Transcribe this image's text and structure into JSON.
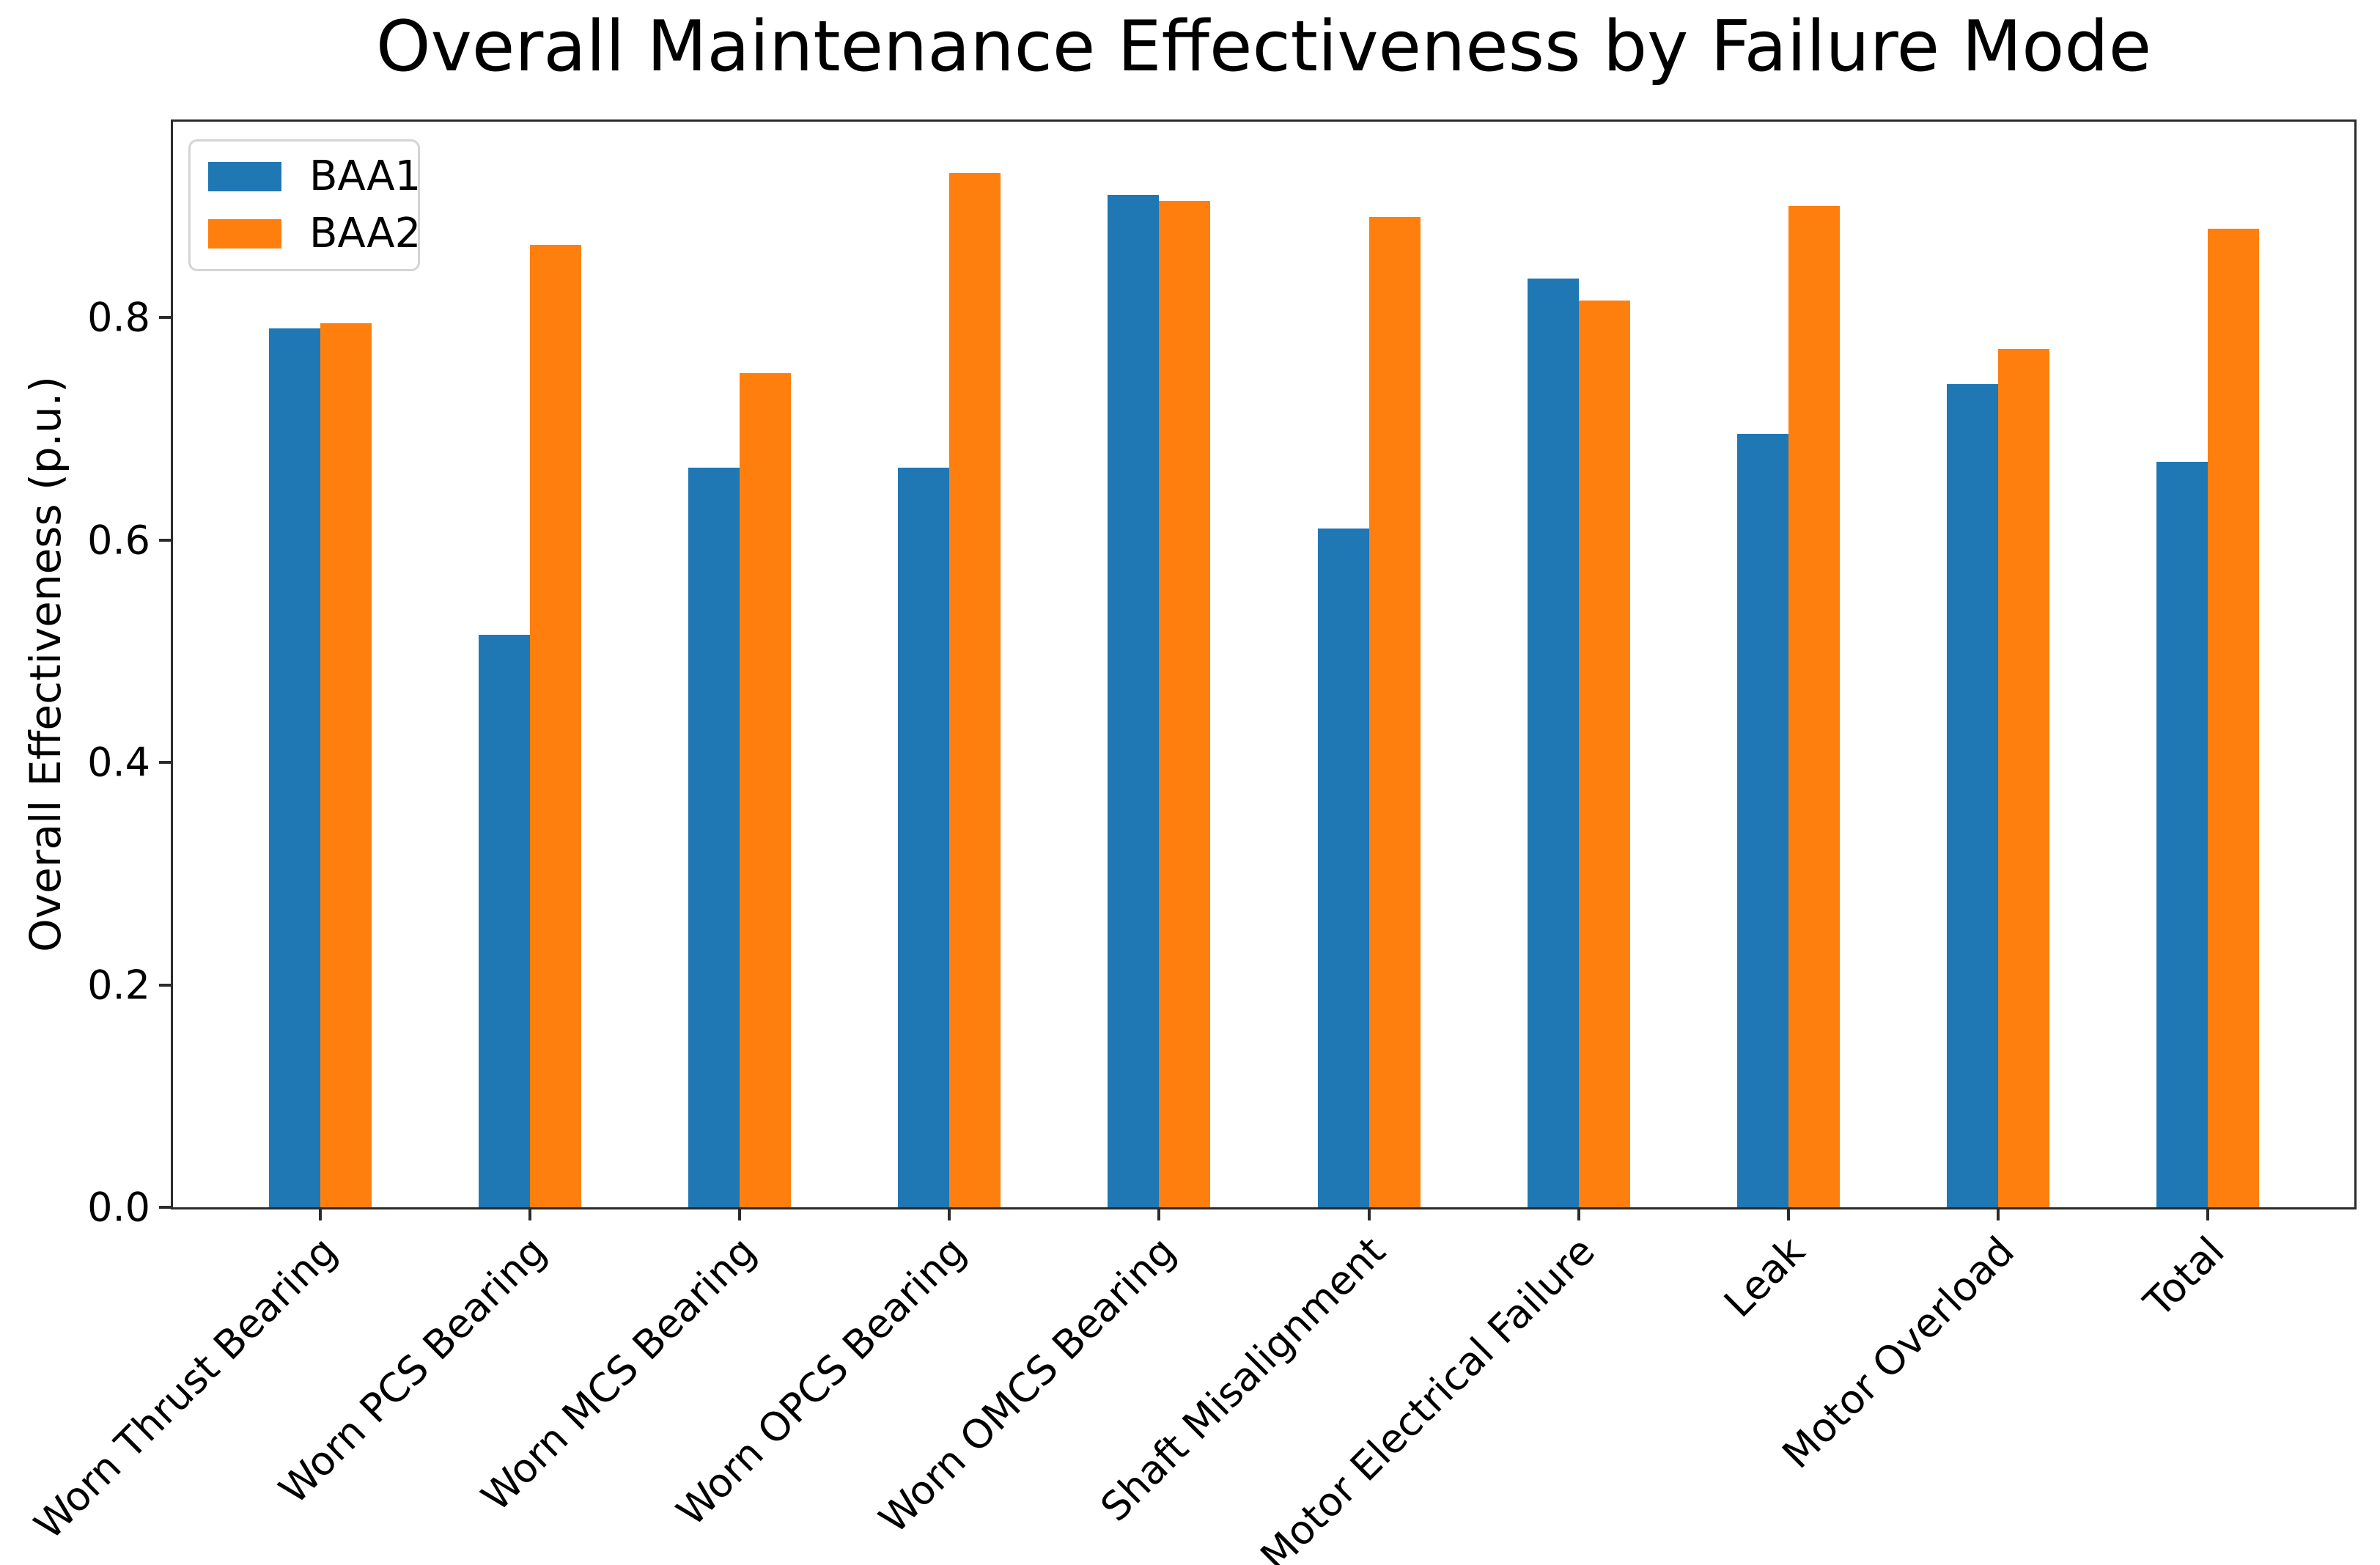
{
  "title": "Overall Maintenance Effectiveness by Failure Mode",
  "chart_data": {
    "type": "bar",
    "title": "Overall Maintenance Effectiveness by Failure Mode",
    "xlabel": "",
    "ylabel": "Overall Effectiveness (p.u.)",
    "categories": [
      "Worn Thrust Bearing",
      "Worn PCS Bearing",
      "Worn MCS Bearing",
      "Worn OPCS Bearing",
      "Worn OMCS Bearing",
      "Shaft Misalignment",
      "Motor Electrical Failure",
      "Leak",
      "Motor Overload",
      "Total"
    ],
    "series": [
      {
        "name": "BAA1",
        "color": "#1f77b4",
        "values": [
          0.79,
          0.515,
          0.665,
          0.665,
          0.91,
          0.61,
          0.835,
          0.695,
          0.74,
          0.67
        ]
      },
      {
        "name": "BAA2",
        "color": "#ff7f0e",
        "values": [
          0.795,
          0.865,
          0.75,
          0.93,
          0.905,
          0.89,
          0.815,
          0.9,
          0.772,
          0.88
        ]
      }
    ],
    "yticks": [
      "0.0",
      "0.2",
      "0.4",
      "0.6",
      "0.8"
    ],
    "ylim": [
      0,
      0.976
    ],
    "grid": false,
    "legend_position": "upper left",
    "x_tick_rotation": 45,
    "spine_color": "#2b2b2b"
  },
  "legend": {
    "items": [
      {
        "label": "BAA1",
        "color": "#1f77b4"
      },
      {
        "label": "BAA2",
        "color": "#ff7f0e"
      }
    ]
  }
}
